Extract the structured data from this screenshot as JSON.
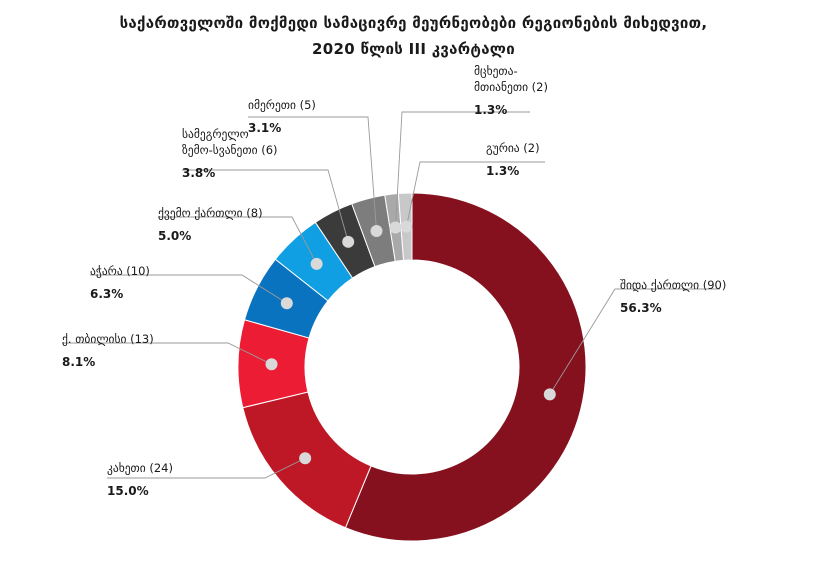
{
  "title": {
    "line1": "საქართველოში მოქმედი სამაცივრე მეურნეობები რეგიონების მიხედვით,",
    "line2": "2020 წლის III კვარტალი"
  },
  "chart_data": {
    "type": "donut",
    "slices": [
      {
        "label": [
          "შიდა ქართლი (90)"
        ],
        "pct": "56.3%",
        "value": 90,
        "color": "#85111e"
      },
      {
        "label": [
          "კახეთი (24)"
        ],
        "pct": "15.0%",
        "value": 24,
        "color": "#be1827"
      },
      {
        "label": [
          "ქ. თბილისი (13)"
        ],
        "pct": "8.1%",
        "value": 13,
        "color": "#ec1c34"
      },
      {
        "label": [
          "აჭარა (10)"
        ],
        "pct": "6.3%",
        "value": 10,
        "color": "#0a73bf"
      },
      {
        "label": [
          "ქვემო ქართლი (8)"
        ],
        "pct": "5.0%",
        "value": 8,
        "color": "#0f9fe2"
      },
      {
        "label": [
          "სამეგრელო",
          "ზემო-სვანეთი (6)"
        ],
        "pct": "3.8%",
        "value": 6,
        "color": "#3b3b3b"
      },
      {
        "label": [
          "იმერეთი (5)"
        ],
        "pct": "3.1%",
        "value": 5,
        "color": "#7d7d7d"
      },
      {
        "label": [
          "მცხეთა-",
          "მთიანეთი (2)"
        ],
        "pct": "1.3%",
        "value": 2,
        "color": "#a9a9a9"
      },
      {
        "label": [
          "გურია (2)"
        ],
        "pct": "1.3%",
        "value": 2,
        "color": "#c8c8c8"
      }
    ]
  }
}
